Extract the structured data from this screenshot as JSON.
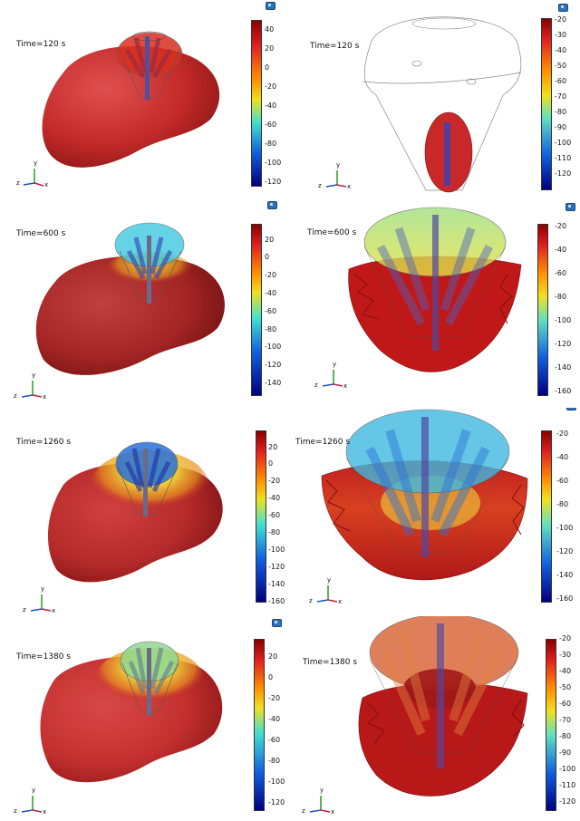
{
  "panels": [
    {
      "time": "Time=120 s",
      "ticks": [
        "40",
        "20",
        "0",
        "-20",
        "-40",
        "-60",
        "-80",
        "-100",
        "-120"
      ]
    },
    {
      "time": "Time=120 s",
      "ticks": [
        "-20",
        "-30",
        "-40",
        "-50",
        "-60",
        "-70",
        "-80",
        "-90",
        "-100",
        "-110",
        "-120"
      ]
    },
    {
      "time": "Time=600 s",
      "ticks": [
        "20",
        "0",
        "-20",
        "-40",
        "-60",
        "-80",
        "-100",
        "-120",
        "-140"
      ]
    },
    {
      "time": "Time=600 s",
      "ticks": [
        "-20",
        "-40",
        "-60",
        "-80",
        "-100",
        "-120",
        "-140",
        "-160"
      ]
    },
    {
      "time": "Time=1260 s",
      "ticks": [
        "20",
        "0",
        "-20",
        "-40",
        "-60",
        "-80",
        "-100",
        "-120",
        "-140",
        "-160"
      ]
    },
    {
      "time": "Time=1260 s",
      "ticks": [
        "-20",
        "-40",
        "-60",
        "-80",
        "-100",
        "-120",
        "-140",
        "-160"
      ]
    },
    {
      "time": "Time=1380 s",
      "ticks": [
        "20",
        "0",
        "-20",
        "-40",
        "-60",
        "-80",
        "-100",
        "-120"
      ]
    },
    {
      "time": "Time=1380 s",
      "ticks": [
        "-20",
        "-30",
        "-40",
        "-50",
        "-60",
        "-70",
        "-80",
        "-90",
        "-100",
        "-110",
        "-120"
      ]
    }
  ],
  "axes": {
    "x": "x",
    "y": "y",
    "z": "z"
  },
  "colors": {
    "hot": "#c82020",
    "cold": "#1010a0",
    "mid": "#e8d020"
  },
  "icons": {
    "camera": "camera-icon"
  }
}
